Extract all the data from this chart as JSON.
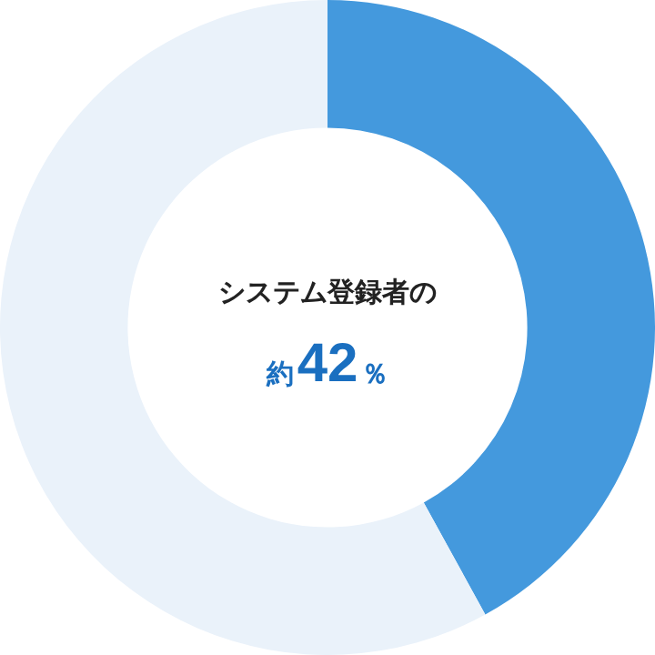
{
  "chart_data": {
    "type": "donut",
    "title": "システム登録者の",
    "annotations": [
      "約42％"
    ],
    "categories": [
      null,
      null
    ],
    "values": [
      42,
      58
    ],
    "colors": [
      "#4499dd",
      "#eaf2fa"
    ]
  }
}
